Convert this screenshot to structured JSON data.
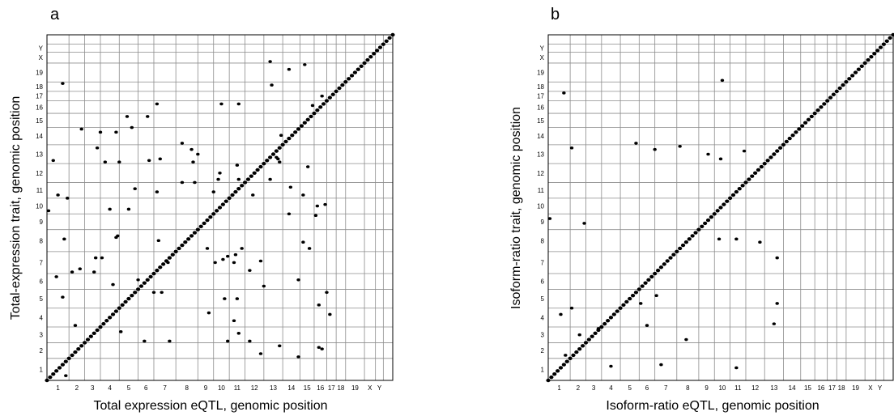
{
  "chart_data": [
    {
      "type": "scatter",
      "panel_label": "a",
      "xlabel": "Total expression eQTL, genomic position",
      "ylabel": "Total-expression trait, genomic position",
      "x_tick_labels": [
        "1",
        "2",
        "3",
        "4",
        "5",
        "6",
        "7",
        "8",
        "9",
        "10",
        "11",
        "12",
        "13",
        "14",
        "15",
        "16",
        "17",
        "18",
        "19",
        "X",
        "Y"
      ],
      "y_tick_labels": [
        "1",
        "2",
        "3",
        "4",
        "5",
        "6",
        "7",
        "8",
        "9",
        "10",
        "11",
        "12",
        "13",
        "14",
        "15",
        "16",
        "17",
        "18",
        "19",
        "X",
        "Y"
      ],
      "chromosome_boundaries": [
        0.0,
        0.7,
        1.2,
        1.7,
        2.3,
        2.9,
        3.4,
        4.1,
        4.8,
        5.3,
        5.8,
        6.3,
        6.9,
        7.5,
        8.05,
        8.5,
        8.9,
        9.2,
        9.5,
        10.1,
        10.45,
        10.7,
        11.0
      ],
      "grid": true,
      "diagonal": true,
      "cis_points": 110,
      "trans_points": [
        {
          "x": 0.05,
          "y": 5.4
        },
        {
          "x": 0.3,
          "y": 3.3
        },
        {
          "x": 0.5,
          "y": 2.65
        },
        {
          "x": 0.6,
          "y": 0.15
        },
        {
          "x": 0.2,
          "y": 7.0
        },
        {
          "x": 0.35,
          "y": 5.9
        },
        {
          "x": 0.5,
          "y": 9.45
        },
        {
          "x": 0.55,
          "y": 4.5
        },
        {
          "x": 0.65,
          "y": 5.8
        },
        {
          "x": 0.8,
          "y": 3.45
        },
        {
          "x": 0.9,
          "y": 1.75
        },
        {
          "x": 1.0,
          "y": 1.0
        },
        {
          "x": 1.05,
          "y": 3.55
        },
        {
          "x": 1.1,
          "y": 8.0
        },
        {
          "x": 1.5,
          "y": 3.45
        },
        {
          "x": 1.55,
          "y": 3.9
        },
        {
          "x": 1.6,
          "y": 7.4
        },
        {
          "x": 1.7,
          "y": 7.9
        },
        {
          "x": 1.75,
          "y": 3.9
        },
        {
          "x": 1.85,
          "y": 6.95
        },
        {
          "x": 2.0,
          "y": 5.45
        },
        {
          "x": 2.1,
          "y": 3.05
        },
        {
          "x": 2.2,
          "y": 7.9
        },
        {
          "x": 2.25,
          "y": 4.6
        },
        {
          "x": 2.3,
          "y": 6.95
        },
        {
          "x": 2.55,
          "y": 8.4
        },
        {
          "x": 2.7,
          "y": 8.05
        },
        {
          "x": 2.8,
          "y": 6.1
        },
        {
          "x": 3.2,
          "y": 8.4
        },
        {
          "x": 3.25,
          "y": 7.0
        },
        {
          "x": 2.35,
          "y": 1.55
        },
        {
          "x": 3.1,
          "y": 1.25
        },
        {
          "x": 2.9,
          "y": 3.2
        },
        {
          "x": 3.5,
          "y": 6.0
        },
        {
          "x": 3.4,
          "y": 2.8
        },
        {
          "x": 3.6,
          "y": 7.05
        },
        {
          "x": 3.55,
          "y": 4.45
        },
        {
          "x": 3.5,
          "y": 8.8
        },
        {
          "x": 3.9,
          "y": 1.25
        },
        {
          "x": 3.85,
          "y": 3.75
        },
        {
          "x": 3.65,
          "y": 2.8
        },
        {
          "x": 4.3,
          "y": 6.3
        },
        {
          "x": 4.3,
          "y": 7.55
        },
        {
          "x": 4.6,
          "y": 7.35
        },
        {
          "x": 4.7,
          "y": 6.3
        },
        {
          "x": 4.65,
          "y": 6.95
        },
        {
          "x": 4.8,
          "y": 7.2
        },
        {
          "x": 5.3,
          "y": 6.0
        },
        {
          "x": 5.1,
          "y": 4.2
        },
        {
          "x": 5.15,
          "y": 2.15
        },
        {
          "x": 5.35,
          "y": 3.75
        },
        {
          "x": 5.5,
          "y": 6.6
        },
        {
          "x": 5.45,
          "y": 6.4
        },
        {
          "x": 5.6,
          "y": 3.85
        },
        {
          "x": 5.65,
          "y": 2.6
        },
        {
          "x": 5.55,
          "y": 8.8
        },
        {
          "x": 5.75,
          "y": 1.25
        },
        {
          "x": 5.75,
          "y": 3.95
        },
        {
          "x": 5.95,
          "y": 3.75
        },
        {
          "x": 6.0,
          "y": 4.0
        },
        {
          "x": 6.05,
          "y": 2.6
        },
        {
          "x": 6.1,
          "y": 8.8
        },
        {
          "x": 6.05,
          "y": 6.85
        },
        {
          "x": 6.1,
          "y": 1.5
        },
        {
          "x": 6.1,
          "y": 6.4
        },
        {
          "x": 6.2,
          "y": 4.2
        },
        {
          "x": 5.95,
          "y": 1.9
        },
        {
          "x": 6.45,
          "y": 1.25
        },
        {
          "x": 6.55,
          "y": 5.9
        },
        {
          "x": 6.45,
          "y": 3.5
        },
        {
          "x": 6.8,
          "y": 3.8
        },
        {
          "x": 6.9,
          "y": 3.0
        },
        {
          "x": 7.1,
          "y": 10.15
        },
        {
          "x": 7.15,
          "y": 9.4
        },
        {
          "x": 6.8,
          "y": 0.85
        },
        {
          "x": 7.3,
          "y": 7.1
        },
        {
          "x": 7.1,
          "y": 6.4
        },
        {
          "x": 7.4,
          "y": 1.1
        },
        {
          "x": 7.45,
          "y": 7.8
        },
        {
          "x": 7.35,
          "y": 7.05
        },
        {
          "x": 7.4,
          "y": 6.95
        },
        {
          "x": 7.7,
          "y": 5.3
        },
        {
          "x": 7.7,
          "y": 9.9
        },
        {
          "x": 7.75,
          "y": 6.15
        },
        {
          "x": 8.0,
          "y": 0.75
        },
        {
          "x": 8.0,
          "y": 3.2
        },
        {
          "x": 8.2,
          "y": 10.05
        },
        {
          "x": 8.15,
          "y": 4.4
        },
        {
          "x": 8.15,
          "y": 5.9
        },
        {
          "x": 8.35,
          "y": 4.2
        },
        {
          "x": 8.45,
          "y": 8.75
        },
        {
          "x": 8.3,
          "y": 6.8
        },
        {
          "x": 8.55,
          "y": 5.25
        },
        {
          "x": 8.6,
          "y": 5.55
        },
        {
          "x": 8.65,
          "y": 2.4
        },
        {
          "x": 8.65,
          "y": 1.05
        },
        {
          "x": 8.75,
          "y": 9.05
        },
        {
          "x": 8.85,
          "y": 5.6
        },
        {
          "x": 8.75,
          "y": 1.0
        },
        {
          "x": 8.9,
          "y": 2.8
        },
        {
          "x": 9.0,
          "y": 2.1
        },
        {
          "x": 2.2,
          "y": 4.55
        },
        {
          "x": 2.6,
          "y": 5.45
        }
      ]
    },
    {
      "type": "scatter",
      "panel_label": "b",
      "xlabel": "Isoform-ratio eQTL, genomic position",
      "ylabel": "Isoform-ratio trait, genomic position",
      "x_tick_labels": [
        "1",
        "2",
        "3",
        "4",
        "5",
        "6",
        "7",
        "8",
        "9",
        "10",
        "11",
        "12",
        "13",
        "14",
        "15",
        "16",
        "17",
        "18",
        "19",
        "X",
        "Y"
      ],
      "y_tick_labels": [
        "1",
        "2",
        "3",
        "4",
        "5",
        "6",
        "7",
        "8",
        "9",
        "10",
        "11",
        "12",
        "13",
        "14",
        "15",
        "16",
        "17",
        "18",
        "19",
        "X",
        "Y"
      ],
      "chromosome_boundaries": [
        0.0,
        0.7,
        1.2,
        1.7,
        2.3,
        2.9,
        3.4,
        4.1,
        4.8,
        5.3,
        5.8,
        6.3,
        6.9,
        7.5,
        8.05,
        8.5,
        8.9,
        9.2,
        9.5,
        10.1,
        10.45,
        10.7,
        11.0
      ],
      "grid": true,
      "diagonal": true,
      "cis_points": 110,
      "trans_points": [
        {
          "x": 0.05,
          "y": 5.15
        },
        {
          "x": 0.4,
          "y": 2.1
        },
        {
          "x": 0.55,
          "y": 0.8
        },
        {
          "x": 0.5,
          "y": 9.15
        },
        {
          "x": 0.75,
          "y": 2.3
        },
        {
          "x": 0.75,
          "y": 7.4
        },
        {
          "x": 1.0,
          "y": 1.45
        },
        {
          "x": 1.15,
          "y": 5.0
        },
        {
          "x": 1.6,
          "y": 1.65
        },
        {
          "x": 2.0,
          "y": 0.45
        },
        {
          "x": 2.8,
          "y": 7.55
        },
        {
          "x": 2.95,
          "y": 2.45
        },
        {
          "x": 3.15,
          "y": 1.75
        },
        {
          "x": 3.4,
          "y": 7.35
        },
        {
          "x": 3.45,
          "y": 2.7
        },
        {
          "x": 3.6,
          "y": 0.5
        },
        {
          "x": 4.2,
          "y": 7.45
        },
        {
          "x": 4.4,
          "y": 1.3
        },
        {
          "x": 5.1,
          "y": 7.2
        },
        {
          "x": 5.45,
          "y": 4.5
        },
        {
          "x": 5.55,
          "y": 9.55
        },
        {
          "x": 5.5,
          "y": 7.05
        },
        {
          "x": 6.0,
          "y": 4.5
        },
        {
          "x": 6.0,
          "y": 0.4
        },
        {
          "x": 6.25,
          "y": 7.3
        },
        {
          "x": 6.75,
          "y": 4.4
        },
        {
          "x": 7.2,
          "y": 1.8
        },
        {
          "x": 7.3,
          "y": 3.9
        },
        {
          "x": 7.3,
          "y": 2.45
        }
      ]
    }
  ]
}
